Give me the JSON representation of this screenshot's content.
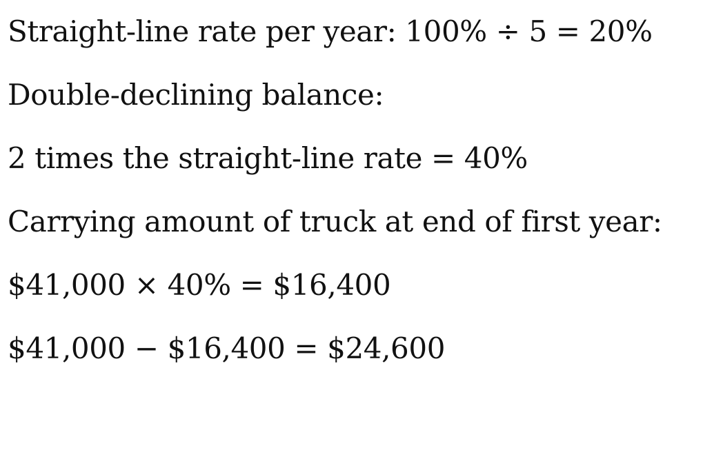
{
  "lines": [
    "Straight-line rate per year: 100% ÷ 5 = 20%",
    "Double-declining balance:",
    "2 times the straight-line rate = 40%",
    "Carrying amount of truck at end of first year:",
    "$41,000 × 40% = $16,400",
    "$41,000 − $16,400 = $24,600"
  ]
}
